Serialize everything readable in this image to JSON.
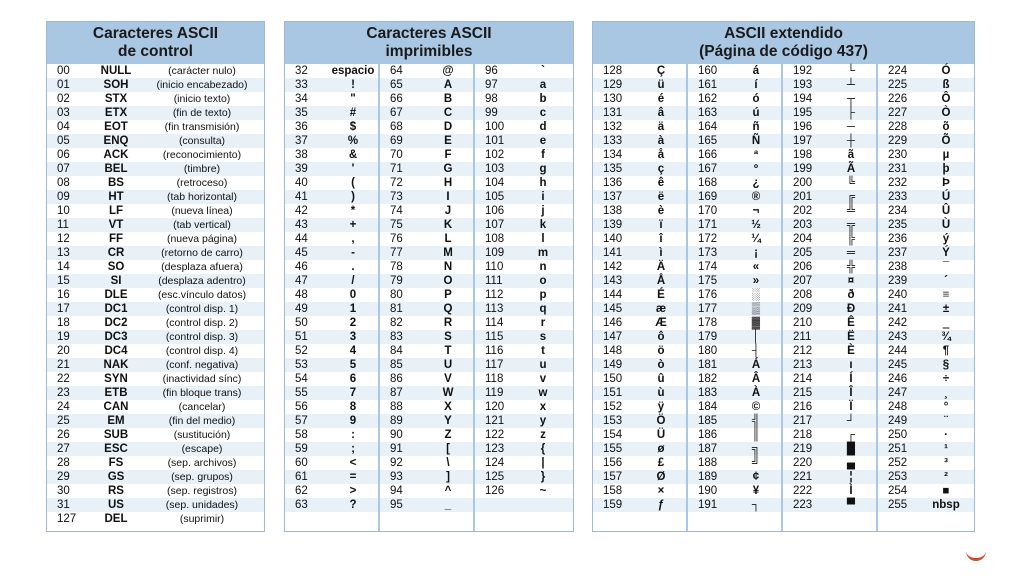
{
  "panels": {
    "control": {
      "title_line1": "Caracteres ASCII",
      "title_line2": "de control"
    },
    "printable": {
      "title_line1": "Caracteres ASCII",
      "title_line2": "imprimibles"
    },
    "extended": {
      "title_line1": "ASCII extendido",
      "title_line2": "(Página de código 437)"
    }
  },
  "control_rows": [
    {
      "code": "00",
      "name": "NULL",
      "desc": "(carácter nulo)"
    },
    {
      "code": "01",
      "name": "SOH",
      "desc": "(inicio encabezado)"
    },
    {
      "code": "02",
      "name": "STX",
      "desc": "(inicio texto)"
    },
    {
      "code": "03",
      "name": "ETX",
      "desc": "(fin de texto)"
    },
    {
      "code": "04",
      "name": "EOT",
      "desc": "(fin transmisión)"
    },
    {
      "code": "05",
      "name": "ENQ",
      "desc": "(consulta)"
    },
    {
      "code": "06",
      "name": "ACK",
      "desc": "(reconocimiento)"
    },
    {
      "code": "07",
      "name": "BEL",
      "desc": "(timbre)"
    },
    {
      "code": "08",
      "name": "BS",
      "desc": "(retroceso)"
    },
    {
      "code": "09",
      "name": "HT",
      "desc": "(tab horizontal)"
    },
    {
      "code": "10",
      "name": "LF",
      "desc": "(nueva línea)"
    },
    {
      "code": "11",
      "name": "VT",
      "desc": "(tab vertical)"
    },
    {
      "code": "12",
      "name": "FF",
      "desc": "(nueva página)"
    },
    {
      "code": "13",
      "name": "CR",
      "desc": "(retorno de carro)"
    },
    {
      "code": "14",
      "name": "SO",
      "desc": "(desplaza afuera)"
    },
    {
      "code": "15",
      "name": "SI",
      "desc": "(desplaza adentro)"
    },
    {
      "code": "16",
      "name": "DLE",
      "desc": "(esc.vínculo datos)"
    },
    {
      "code": "17",
      "name": "DC1",
      "desc": "(control disp. 1)"
    },
    {
      "code": "18",
      "name": "DC2",
      "desc": "(control disp. 2)"
    },
    {
      "code": "19",
      "name": "DC3",
      "desc": "(control disp. 3)"
    },
    {
      "code": "20",
      "name": "DC4",
      "desc": "(control disp. 4)"
    },
    {
      "code": "21",
      "name": "NAK",
      "desc": "(conf. negativa)"
    },
    {
      "code": "22",
      "name": "SYN",
      "desc": "(inactividad sínc)"
    },
    {
      "code": "23",
      "name": "ETB",
      "desc": "(fin bloque trans)"
    },
    {
      "code": "24",
      "name": "CAN",
      "desc": "(cancelar)"
    },
    {
      "code": "25",
      "name": "EM",
      "desc": "(fin del medio)"
    },
    {
      "code": "26",
      "name": "SUB",
      "desc": "(sustitución)"
    },
    {
      "code": "27",
      "name": "ESC",
      "desc": "(escape)"
    },
    {
      "code": "28",
      "name": "FS",
      "desc": "(sep. archivos)"
    },
    {
      "code": "29",
      "name": "GS",
      "desc": "(sep. grupos)"
    },
    {
      "code": "30",
      "name": "RS",
      "desc": "(sep. registros)"
    },
    {
      "code": "31",
      "name": "US",
      "desc": "(sep. unidades)"
    },
    {
      "code": "127",
      "name": "DEL",
      "desc": "(suprimir)"
    }
  ],
  "printable_rows": [
    [
      "32",
      "espacio",
      "64",
      "@",
      "96",
      "`"
    ],
    [
      "33",
      "!",
      "65",
      "A",
      "97",
      "a"
    ],
    [
      "34",
      "\"",
      "66",
      "B",
      "98",
      "b"
    ],
    [
      "35",
      "#",
      "67",
      "C",
      "99",
      "c"
    ],
    [
      "36",
      "$",
      "68",
      "D",
      "100",
      "d"
    ],
    [
      "37",
      "%",
      "69",
      "E",
      "101",
      "e"
    ],
    [
      "38",
      "&",
      "70",
      "F",
      "102",
      "f"
    ],
    [
      "39",
      "'",
      "71",
      "G",
      "103",
      "g"
    ],
    [
      "40",
      "(",
      "72",
      "H",
      "104",
      "h"
    ],
    [
      "41",
      ")",
      "73",
      "I",
      "105",
      "i"
    ],
    [
      "42",
      "*",
      "74",
      "J",
      "106",
      "j"
    ],
    [
      "43",
      "+",
      "75",
      "K",
      "107",
      "k"
    ],
    [
      "44",
      ",",
      "76",
      "L",
      "108",
      "l"
    ],
    [
      "45",
      "-",
      "77",
      "M",
      "109",
      "m"
    ],
    [
      "46",
      ".",
      "78",
      "N",
      "110",
      "n"
    ],
    [
      "47",
      "/",
      "79",
      "O",
      "111",
      "o"
    ],
    [
      "48",
      "0",
      "80",
      "P",
      "112",
      "p"
    ],
    [
      "49",
      "1",
      "81",
      "Q",
      "113",
      "q"
    ],
    [
      "50",
      "2",
      "82",
      "R",
      "114",
      "r"
    ],
    [
      "51",
      "3",
      "83",
      "S",
      "115",
      "s"
    ],
    [
      "52",
      "4",
      "84",
      "T",
      "116",
      "t"
    ],
    [
      "53",
      "5",
      "85",
      "U",
      "117",
      "u"
    ],
    [
      "54",
      "6",
      "86",
      "V",
      "118",
      "v"
    ],
    [
      "55",
      "7",
      "87",
      "W",
      "119",
      "w"
    ],
    [
      "56",
      "8",
      "88",
      "X",
      "120",
      "x"
    ],
    [
      "57",
      "9",
      "89",
      "Y",
      "121",
      "y"
    ],
    [
      "58",
      ":",
      "90",
      "Z",
      "122",
      "z"
    ],
    [
      "59",
      ";",
      "91",
      "[",
      "123",
      "{"
    ],
    [
      "60",
      "<",
      "92",
      "\\",
      "124",
      "|"
    ],
    [
      "61",
      "=",
      "93",
      "]",
      "125",
      "}"
    ],
    [
      "62",
      ">",
      "94",
      "^",
      "126",
      "~"
    ],
    [
      "63",
      "?",
      "95",
      "_",
      "",
      ""
    ]
  ],
  "extended_rows": [
    [
      "128",
      "Ç",
      "160",
      "á",
      "192",
      "└",
      "224",
      "Ó"
    ],
    [
      "129",
      "ü",
      "161",
      "í",
      "193",
      "┴",
      "225",
      "ß"
    ],
    [
      "130",
      "é",
      "162",
      "ó",
      "194",
      "┬",
      "226",
      "Ô"
    ],
    [
      "131",
      "â",
      "163",
      "ú",
      "195",
      "├",
      "227",
      "Ò"
    ],
    [
      "132",
      "ä",
      "164",
      "ñ",
      "196",
      "─",
      "228",
      "õ"
    ],
    [
      "133",
      "à",
      "165",
      "Ñ",
      "197",
      "┼",
      "229",
      "Õ"
    ],
    [
      "134",
      "å",
      "166",
      "ª",
      "198",
      "ã",
      "230",
      "µ"
    ],
    [
      "135",
      "ç",
      "167",
      "º",
      "199",
      "Ã",
      "231",
      "þ"
    ],
    [
      "136",
      "ê",
      "168",
      "¿",
      "200",
      "╚",
      "232",
      "Þ"
    ],
    [
      "137",
      "ë",
      "169",
      "®",
      "201",
      "╔",
      "233",
      "Ú"
    ],
    [
      "138",
      "è",
      "170",
      "¬",
      "202",
      "╩",
      "234",
      "Û"
    ],
    [
      "139",
      "ï",
      "171",
      "½",
      "203",
      "╦",
      "235",
      "Ù"
    ],
    [
      "140",
      "î",
      "172",
      "¼",
      "204",
      "╠",
      "236",
      "ý"
    ],
    [
      "141",
      "ì",
      "173",
      "¡",
      "205",
      "═",
      "237",
      "Ý"
    ],
    [
      "142",
      "Ä",
      "174",
      "«",
      "206",
      "╬",
      "238",
      "¯"
    ],
    [
      "143",
      "Å",
      "175",
      "»",
      "207",
      "¤",
      "239",
      "´"
    ],
    [
      "144",
      "É",
      "176",
      "░",
      "208",
      "ð",
      "240",
      "≡"
    ],
    [
      "145",
      "æ",
      "177",
      "▒",
      "209",
      "Ð",
      "241",
      "±"
    ],
    [
      "146",
      "Æ",
      "178",
      "▓",
      "210",
      "Ê",
      "242",
      "‗"
    ],
    [
      "147",
      "ô",
      "179",
      "│",
      "211",
      "Ë",
      "243",
      "¾"
    ],
    [
      "148",
      "ö",
      "180",
      "┤",
      "212",
      "È",
      "244",
      "¶"
    ],
    [
      "149",
      "ò",
      "181",
      "Á",
      "213",
      "ı",
      "245",
      "§"
    ],
    [
      "150",
      "û",
      "182",
      "Â",
      "214",
      "Í",
      "246",
      "÷"
    ],
    [
      "151",
      "ù",
      "183",
      "À",
      "215",
      "Î",
      "247",
      "¸"
    ],
    [
      "152",
      "ÿ",
      "184",
      "©",
      "216",
      "Ï",
      "248",
      "°"
    ],
    [
      "153",
      "Ö",
      "185",
      "╣",
      "217",
      "┘",
      "249",
      "¨"
    ],
    [
      "154",
      "Ü",
      "186",
      "║",
      "218",
      "┌",
      "250",
      "·"
    ],
    [
      "155",
      "ø",
      "187",
      "╗",
      "219",
      "█",
      "251",
      "¹"
    ],
    [
      "156",
      "£",
      "188",
      "╝",
      "220",
      "▄",
      "252",
      "³"
    ],
    [
      "157",
      "Ø",
      "189",
      "¢",
      "221",
      "¦",
      "253",
      "²"
    ],
    [
      "158",
      "×",
      "190",
      "¥",
      "222",
      "Ì",
      "254",
      "■"
    ],
    [
      "159",
      "ƒ",
      "191",
      "┐",
      "223",
      "▀",
      "255",
      "nbsp"
    ]
  ]
}
